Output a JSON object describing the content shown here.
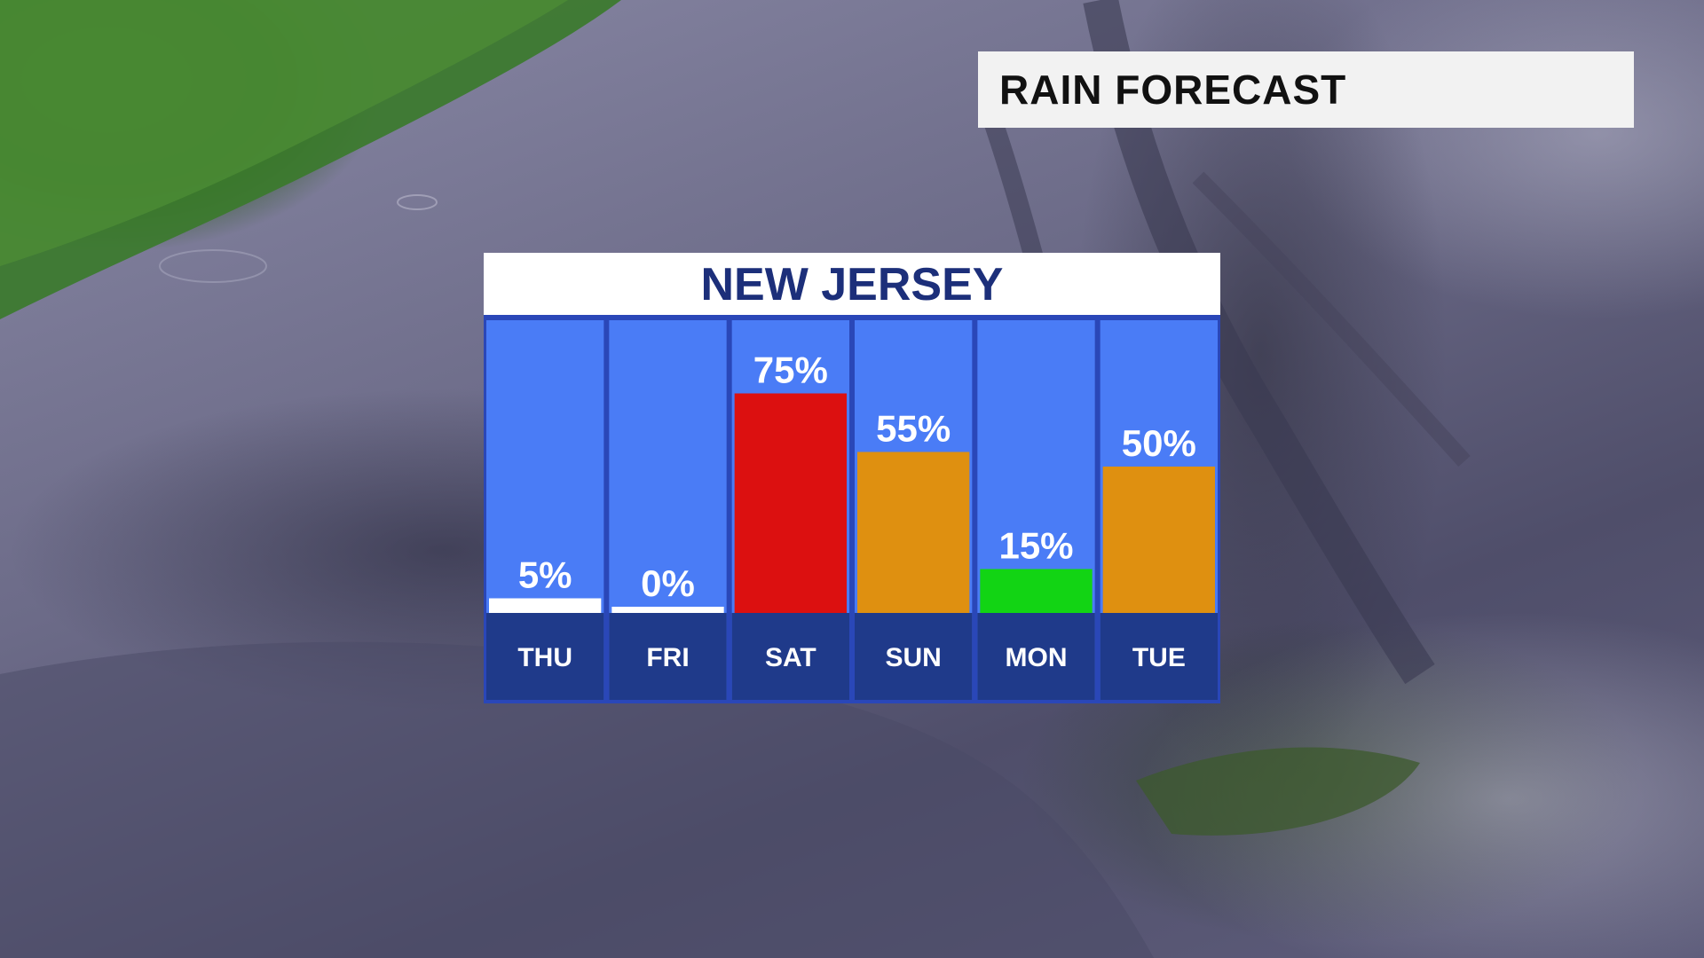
{
  "header": {
    "title": "RAIN FORECAST"
  },
  "chart_data": {
    "type": "bar",
    "title": "NEW JERSEY",
    "categories": [
      "THU",
      "FRI",
      "SAT",
      "SUN",
      "MON",
      "TUE"
    ],
    "values": [
      5,
      0,
      75,
      55,
      15,
      50
    ],
    "value_labels": [
      "5%",
      "0%",
      "75%",
      "55%",
      "15%",
      "50%"
    ],
    "bar_colors": [
      "#ffffff",
      "#ffffff",
      "#dc1010",
      "#df9010",
      "#12d414",
      "#df9010"
    ],
    "ylim": [
      0,
      100
    ],
    "colors": {
      "column_bg": "#4a7cf6",
      "label_bg": "#1f3a8a",
      "title": "#1c2f7a"
    }
  }
}
